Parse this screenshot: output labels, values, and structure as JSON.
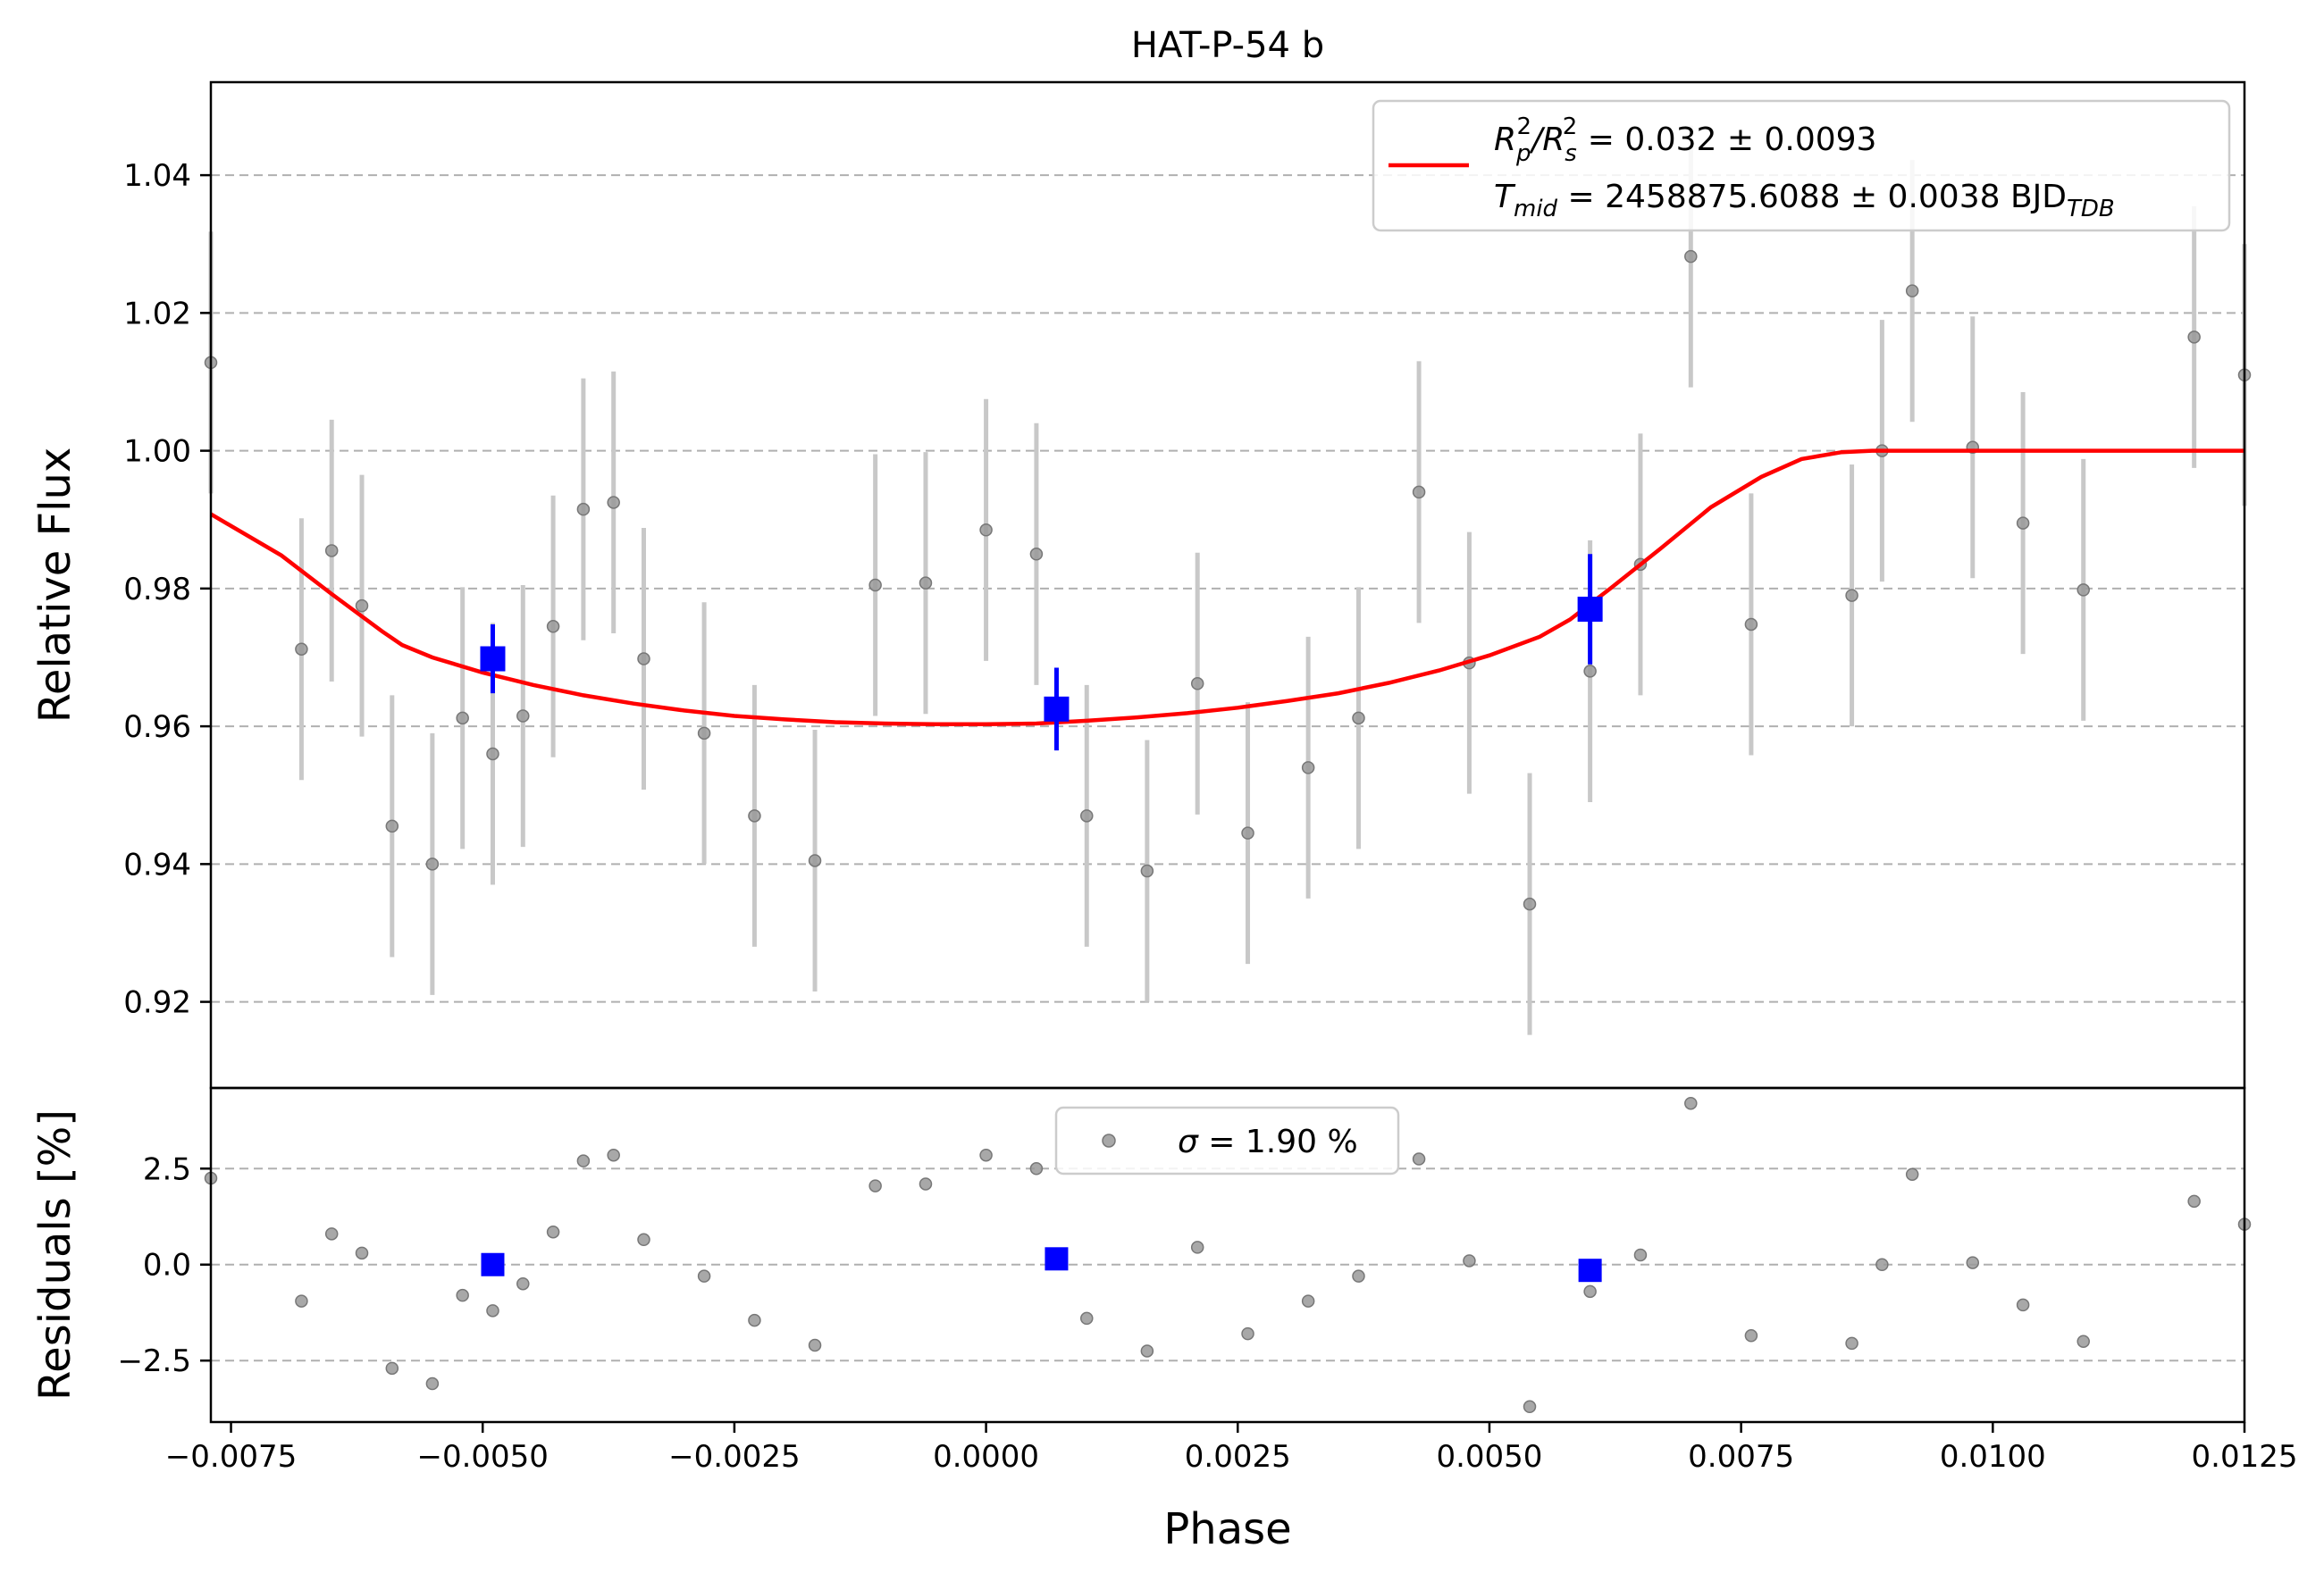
{
  "chart_data": {
    "title": "HAT-P-54 b",
    "xlabel": "Phase",
    "xlim": [
      -0.0077,
      0.0125
    ],
    "xticks": [
      -0.0075,
      -0.005,
      -0.0025,
      0.0,
      0.0025,
      0.005,
      0.0075,
      0.01,
      0.0125
    ],
    "xtick_labels": [
      "−0.0075",
      "−0.0050",
      "−0.0025",
      "0.0000",
      "0.0025",
      "0.0050",
      "0.0075",
      "0.0100",
      "0.0125"
    ],
    "panels": [
      {
        "type": "scatter",
        "ylabel": "Relative Flux",
        "ylim": [
          0.9075,
          1.0535
        ],
        "yticks": [
          0.92,
          0.94,
          0.96,
          0.98,
          1.0,
          1.02,
          1.04
        ],
        "ytick_labels": [
          "0.92",
          "0.94",
          "0.96",
          "0.98",
          "1.00",
          "1.02",
          "1.04"
        ],
        "grid": true,
        "legend_position": "top-right",
        "legend": {
          "line1_sym": "R",
          "line1_sub_p": "p",
          "line1_sup": "2",
          "line1_slash": "/",
          "line1_sub_s": "s",
          "line1_value": " = 0.032 ± 0.0093",
          "line2_sym": "T",
          "line2_sub": "mid",
          "line2_value": " = 2458875.6088 ± 0.0038 BJD",
          "line2_unit_sub": "TDB"
        },
        "data_points": {
          "color": "#888888",
          "error_bar": 0.019,
          "x": [
            -0.0077,
            -0.0068,
            -0.0065,
            -0.0062,
            -0.0059,
            -0.0055,
            -0.0052,
            -0.0049,
            -0.0046,
            -0.0043,
            -0.004,
            -0.0037,
            -0.0034,
            -0.0028,
            -0.0023,
            -0.0017,
            -0.0011,
            -0.0006,
            -0.0,
            0.0005,
            0.001,
            0.0016,
            0.0021,
            0.0026,
            0.0032,
            0.0037,
            0.0043,
            0.0048,
            0.0054,
            0.006,
            0.0065,
            0.007,
            0.0076,
            0.0086,
            0.0089,
            0.0092,
            0.0098,
            0.0103,
            0.0109,
            0.012,
            0.0125
          ],
          "y": [
            1.0128,
            0.9712,
            0.9855,
            0.9775,
            0.9455,
            0.94,
            0.9612,
            0.956,
            0.9615,
            0.9745,
            0.9915,
            0.9925,
            0.9698,
            0.959,
            0.947,
            0.9405,
            0.9805,
            0.9808,
            0.9885,
            0.985,
            0.947,
            0.939,
            0.9662,
            0.9445,
            0.954,
            0.9612,
            0.994,
            0.9692,
            0.9342,
            0.968,
            0.9835,
            1.0282,
            0.9748,
            0.979,
            1.0,
            1.0232,
            1.0005,
            0.9895,
            0.9798,
            1.0165,
            1.011
          ]
        },
        "binned_points": {
          "color": "#0000ff",
          "x": [
            -0.0049,
            0.0007,
            0.006
          ],
          "y": [
            0.9698,
            0.9625,
            0.977
          ],
          "yerr": [
            0.005,
            0.006,
            0.008
          ]
        },
        "model": {
          "color": "#ff0000",
          "x": [
            -0.0077,
            -0.007,
            -0.0065,
            -0.006,
            -0.0058,
            -0.0055,
            -0.005,
            -0.0045,
            -0.004,
            -0.0035,
            -0.003,
            -0.0025,
            -0.002,
            -0.0015,
            -0.001,
            -0.0005,
            0.0,
            0.0005,
            0.001,
            0.0015,
            0.002,
            0.0025,
            0.003,
            0.0035,
            0.004,
            0.0045,
            0.005,
            0.0055,
            0.0058,
            0.0062,
            0.0067,
            0.0072,
            0.0077,
            0.0081,
            0.0085,
            0.0088,
            0.009,
            0.0095,
            0.01,
            0.011,
            0.0125
          ],
          "y": [
            0.9908,
            0.9848,
            0.9792,
            0.9738,
            0.9718,
            0.97,
            0.9678,
            0.966,
            0.9645,
            0.9633,
            0.9623,
            0.9615,
            0.961,
            0.9606,
            0.9604,
            0.9603,
            0.9603,
            0.9604,
            0.9608,
            0.9613,
            0.9619,
            0.9627,
            0.9637,
            0.9648,
            0.9663,
            0.9681,
            0.9703,
            0.973,
            0.9755,
            0.98,
            0.9858,
            0.9918,
            0.9962,
            0.9988,
            0.9998,
            1.0,
            1.0,
            1.0,
            1.0,
            1.0,
            1.0
          ]
        }
      },
      {
        "type": "scatter",
        "ylabel": "Residuals [%]",
        "ylim": [
          -4.1,
          4.6
        ],
        "yticks": [
          -2.5,
          0.0,
          2.5
        ],
        "ytick_labels": [
          "−2.5",
          "0.0",
          "2.5"
        ],
        "grid": true,
        "legend_position": "top-center",
        "legend": {
          "sigma_symbol": "σ",
          "sigma_value": " = 1.90 %"
        },
        "data_points": {
          "color": "#888888",
          "x": [
            -0.0077,
            -0.0068,
            -0.0065,
            -0.0062,
            -0.0059,
            -0.0055,
            -0.0052,
            -0.0049,
            -0.0046,
            -0.0043,
            -0.004,
            -0.0037,
            -0.0034,
            -0.0028,
            -0.0023,
            -0.0017,
            -0.0011,
            -0.0006,
            -0.0,
            0.0005,
            0.001,
            0.0016,
            0.0021,
            0.0026,
            0.0032,
            0.0037,
            0.0043,
            0.0048,
            0.0054,
            0.006,
            0.0065,
            0.007,
            0.0076,
            0.0086,
            0.0089,
            0.0092,
            0.0098,
            0.0103,
            0.0109,
            0.012,
            0.0125
          ],
          "y": [
            2.25,
            -0.95,
            0.8,
            0.3,
            -2.7,
            -3.1,
            -0.8,
            -1.2,
            -0.5,
            0.85,
            2.7,
            2.85,
            0.65,
            -0.3,
            -1.45,
            -2.1,
            2.05,
            2.1,
            2.85,
            2.5,
            -1.4,
            -2.25,
            0.45,
            -1.8,
            -0.95,
            -0.3,
            2.75,
            0.1,
            -3.7,
            -0.7,
            0.25,
            4.2,
            -1.85,
            -2.05,
            0.0,
            2.35,
            0.05,
            -1.05,
            -2.0,
            1.65,
            1.05
          ]
        },
        "binned_points": {
          "color": "#0000ff",
          "x": [
            -0.0049,
            0.0007,
            0.006
          ],
          "y": [
            0.0,
            0.15,
            -0.15
          ]
        }
      }
    ]
  }
}
